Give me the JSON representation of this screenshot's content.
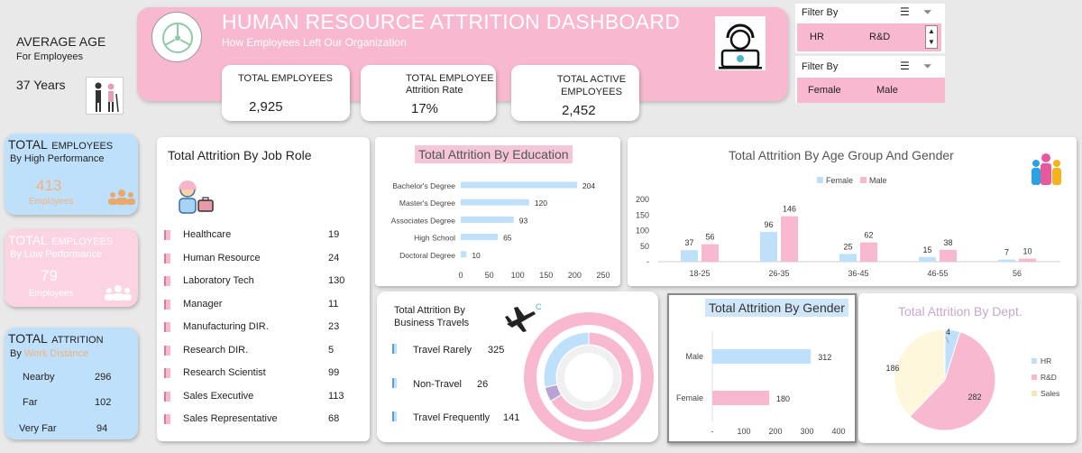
{
  "avg_age": {
    "title": "AVERAGE AGE",
    "subtitle": "For Employees",
    "value": "37 Years"
  },
  "header": {
    "title": "HUMAN RESOURCE ATTRITION DASHBOARD",
    "subtitle": "How Employees Left Our Organization"
  },
  "kpis": [
    {
      "label": "TOTAL EMPLOYEES",
      "value": "2,925"
    },
    {
      "label": "TOTAL EMPLOYEE",
      "sublabel": "Attrition Rate",
      "value": "17%"
    },
    {
      "label": "TOTAL ACTIVE EMPLOYEES",
      "value": "2,452"
    }
  ],
  "filters": [
    {
      "label": "Filter By",
      "options": [
        "HR",
        "R&D"
      ]
    },
    {
      "label": "Filter By",
      "options": [
        "Female",
        "Male"
      ]
    }
  ],
  "high_perf": {
    "title_big": "TOTAL",
    "title_rest": "EMPLOYEES",
    "subtitle": "By High Performance",
    "value": "413",
    "unit": "Employees"
  },
  "low_perf": {
    "title_big": "TOTAL",
    "title_rest": "EMPLOYEES",
    "subtitle": "By Low Performance",
    "value": "79",
    "unit": "Employees"
  },
  "distance": {
    "title_big": "TOTAL",
    "title_rest": "ATTRITION",
    "by": "By",
    "by_colored": "Work Distance",
    "rows": [
      {
        "label": "Nearby",
        "value": "296"
      },
      {
        "label": "Far",
        "value": "102"
      },
      {
        "label": "Very Far",
        "value": "94"
      }
    ]
  },
  "job_role": {
    "title": "Total Attrition By Job Role",
    "rows": [
      {
        "label": "Healthcare",
        "value": "19"
      },
      {
        "label": "Human Resource",
        "value": "24"
      },
      {
        "label": "Laboratory Tech",
        "value": "130"
      },
      {
        "label": "Manager",
        "value": "11"
      },
      {
        "label": "Manufacturing DIR.",
        "value": "23"
      },
      {
        "label": "Research DIR.",
        "value": "5"
      },
      {
        "label": "Research Scientist",
        "value": "99"
      },
      {
        "label": "Sales Executive",
        "value": "113"
      },
      {
        "label": "Sales Representative",
        "value": "68"
      }
    ]
  },
  "travel": {
    "title_line1": "Total Attrition By",
    "title_line2": "Business Travels",
    "rows": [
      {
        "label": "Travel Rarely",
        "value": "325"
      },
      {
        "label": "Non-Travel",
        "value": "26"
      },
      {
        "label": "Travel Frequently",
        "value": "141"
      }
    ],
    "plane_icon_label": "C"
  },
  "gender_title": "Total Attrition By Gender",
  "chart_data": [
    {
      "type": "bar",
      "orientation": "horizontal",
      "title": "Total Attrition By Education",
      "categories": [
        "Bachelor's Degree",
        "Master's Degree",
        "Associates Degree",
        "High School",
        "Doctoral Degree"
      ],
      "values": [
        204,
        120,
        93,
        65,
        10
      ],
      "xlim": [
        0,
        250
      ],
      "xticks": [
        "0",
        "50",
        "100",
        "150",
        "200",
        "250"
      ],
      "color": "#bfe0fb"
    },
    {
      "type": "bar",
      "title": "Total Attrition By Age Group And Gender",
      "categories": [
        "18-25",
        "26-35",
        "36-45",
        "46-55",
        "56"
      ],
      "series": [
        {
          "name": "Female",
          "values": [
            37,
            96,
            25,
            15,
            7
          ],
          "color": "#bfe0fb"
        },
        {
          "name": "Male",
          "values": [
            56,
            146,
            62,
            38,
            10
          ],
          "color": "#f8b8cf"
        }
      ],
      "ylim": [
        0,
        200
      ],
      "yticks": [
        "-",
        "50",
        "100",
        "150",
        "200"
      ],
      "legend": "top"
    },
    {
      "type": "bar",
      "orientation": "horizontal",
      "categories": [
        "Male",
        "Female"
      ],
      "values": [
        312,
        180
      ],
      "colors": [
        "#bfe0fb",
        "#f8b8cf"
      ],
      "xlim": [
        0,
        400
      ],
      "xticks": [
        "-",
        "100",
        "200",
        "300",
        "400"
      ]
    },
    {
      "type": "pie",
      "title": "Total Attrition By Dept.",
      "categories": [
        "HR",
        "R&D",
        "Sales"
      ],
      "values": [
        24,
        282,
        186
      ],
      "colors": [
        "#bfe0fb",
        "#f8b8cf",
        "#fff7dc"
      ],
      "legend": "right"
    }
  ]
}
